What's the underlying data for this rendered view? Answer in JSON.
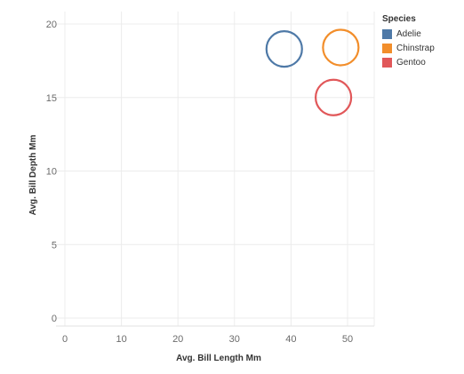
{
  "chart_data": {
    "type": "scatter",
    "xlabel": "Avg. Bill Length Mm",
    "ylabel": "Avg. Bill Depth Mm",
    "xlim": [
      0,
      55
    ],
    "ylim": [
      0,
      20
    ],
    "x_ticks": [
      0,
      10,
      20,
      30,
      40,
      50
    ],
    "y_ticks": [
      0,
      5,
      10,
      15,
      20
    ],
    "grid": true,
    "marker": "hollow-circle",
    "legend": {
      "title": "Species",
      "position": "top-right"
    },
    "series": [
      {
        "name": "Adelie",
        "color": "#4e79a7",
        "x": 38.8,
        "y": 18.3
      },
      {
        "name": "Chinstrap",
        "color": "#f28e2b",
        "x": 48.8,
        "y": 18.4
      },
      {
        "name": "Gentoo",
        "color": "#e15759",
        "x": 47.5,
        "y": 15.0
      }
    ]
  }
}
